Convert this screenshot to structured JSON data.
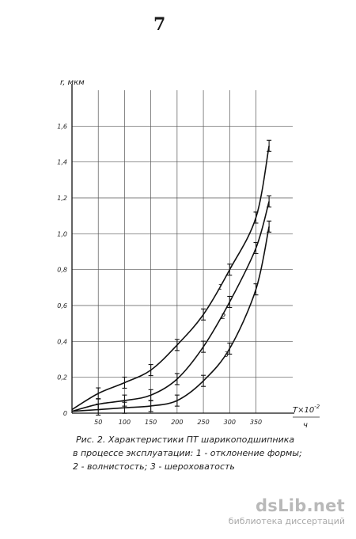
{
  "page_number": "7",
  "chart_data": {
    "type": "line",
    "ylabel": "r, мкм",
    "xlabel_main": "T×10",
    "xlabel_exp": "-2",
    "xlabel_unit": "ч",
    "xlim": [
      0,
      420
    ],
    "ylim": [
      0,
      1.8
    ],
    "x_ticks": [
      50,
      100,
      150,
      200,
      250,
      300,
      350
    ],
    "x_tick_labels": [
      "50",
      "100",
      "150",
      "200",
      "250",
      "300",
      "350"
    ],
    "y_ticks": [
      0,
      0.2,
      0.4,
      0.6,
      0.8,
      1.0,
      1.2,
      1.4,
      1.6
    ],
    "y_tick_labels": [
      "0",
      "0,2",
      "0,4",
      "0,6",
      "0,8",
      "1,0",
      "1,2",
      "1,4",
      "1,6"
    ],
    "grid": true,
    "series": [
      {
        "name": "1",
        "x": [
          0,
          50,
          100,
          150,
          200,
          250,
          300,
          350,
          375
        ],
        "y": [
          0.02,
          0.11,
          0.17,
          0.24,
          0.38,
          0.55,
          0.8,
          1.09,
          1.49
        ]
      },
      {
        "name": "2",
        "x": [
          0,
          50,
          100,
          150,
          200,
          250,
          300,
          350,
          375
        ],
        "y": [
          0.01,
          0.05,
          0.07,
          0.1,
          0.19,
          0.37,
          0.62,
          0.92,
          1.18
        ]
      },
      {
        "name": "3",
        "x": [
          0,
          50,
          100,
          150,
          200,
          250,
          300,
          350,
          375
        ],
        "y": [
          0.01,
          0.02,
          0.03,
          0.04,
          0.07,
          0.18,
          0.36,
          0.69,
          1.04
        ]
      }
    ]
  },
  "caption": {
    "line1": "Рис. 2.    Характеристики ПТ шарикоподшипника",
    "line2": "в процессе эксплуатации: 1 - отклонение формы;",
    "line3": "2 - волнистость; 3 - шероховатость"
  },
  "watermark": {
    "name": "dsLib.net",
    "sub": "библиотека диссертаций"
  }
}
